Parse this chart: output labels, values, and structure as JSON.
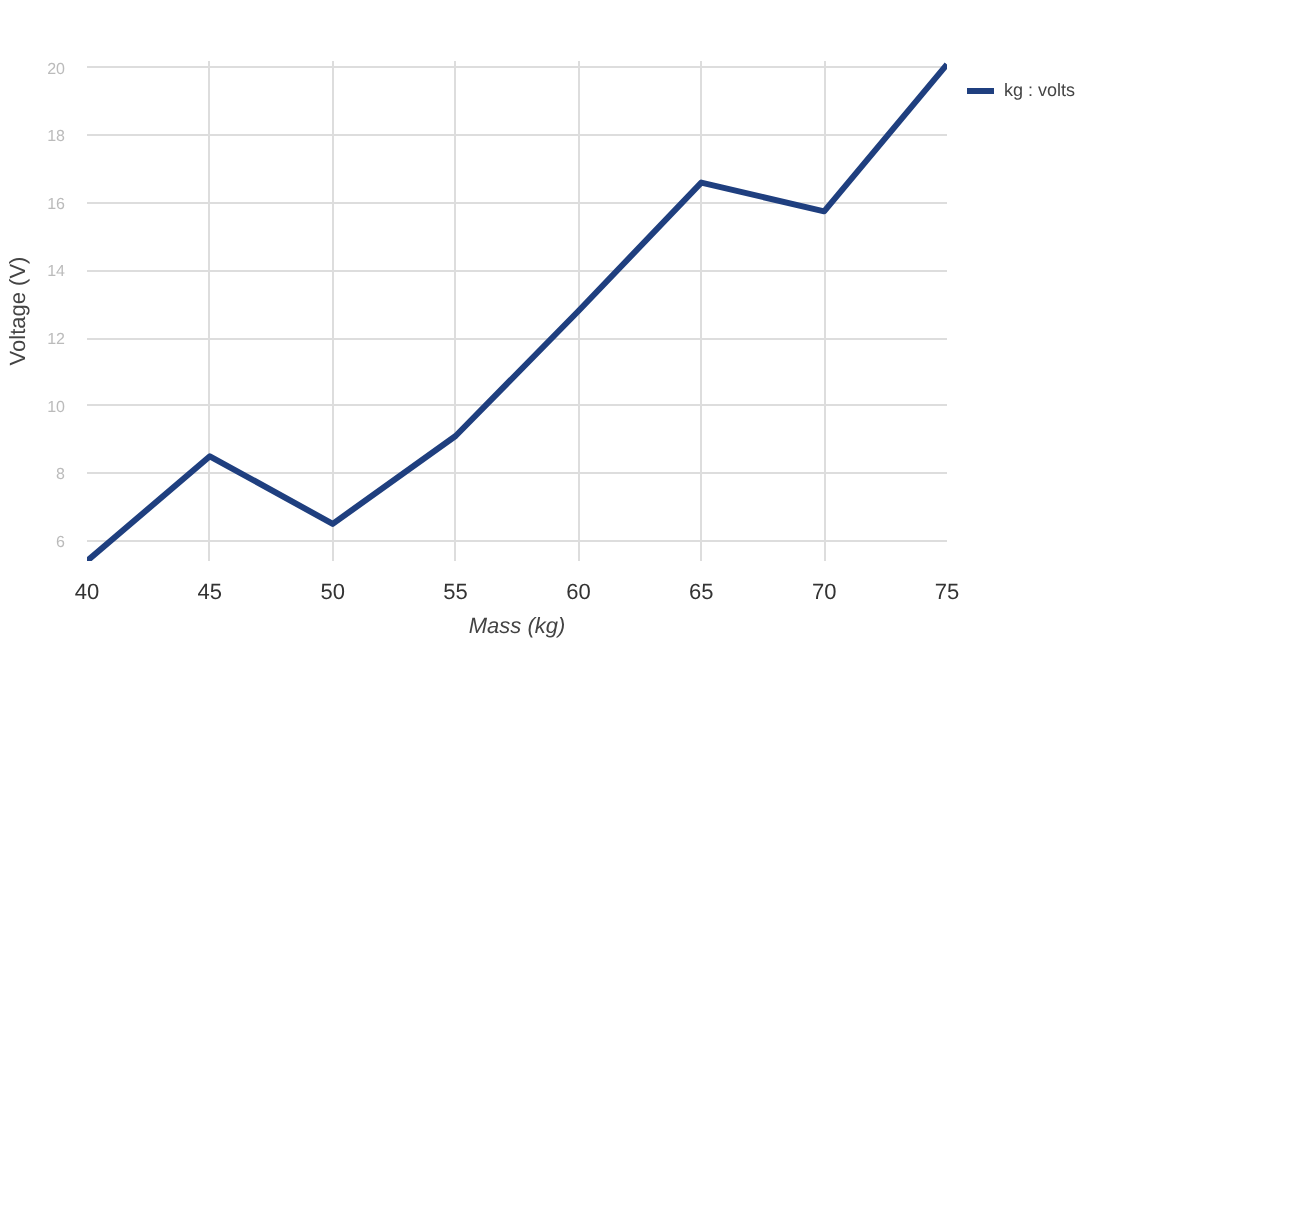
{
  "chart_data": {
    "type": "line",
    "xlabel": "Mass (kg)",
    "ylabel": "Voltage (V)",
    "x": [
      40,
      45,
      50,
      55,
      60,
      65,
      70,
      75
    ],
    "series": [
      {
        "name": "kg : volts",
        "color": "#1f3f7f",
        "values": [
          5.4,
          8.5,
          6.5,
          9.1,
          12.8,
          16.6,
          15.75,
          20.1
        ]
      }
    ],
    "xlim": [
      40,
      75
    ],
    "ylim": [
      5.4,
      20.2
    ],
    "xticks": [
      40,
      45,
      50,
      55,
      60,
      65,
      70,
      75
    ],
    "yticks": [
      6,
      8,
      10,
      12,
      14,
      16,
      18,
      20
    ],
    "grid": true,
    "legend": "top right",
    "marker": "none",
    "line_style": "solid"
  }
}
